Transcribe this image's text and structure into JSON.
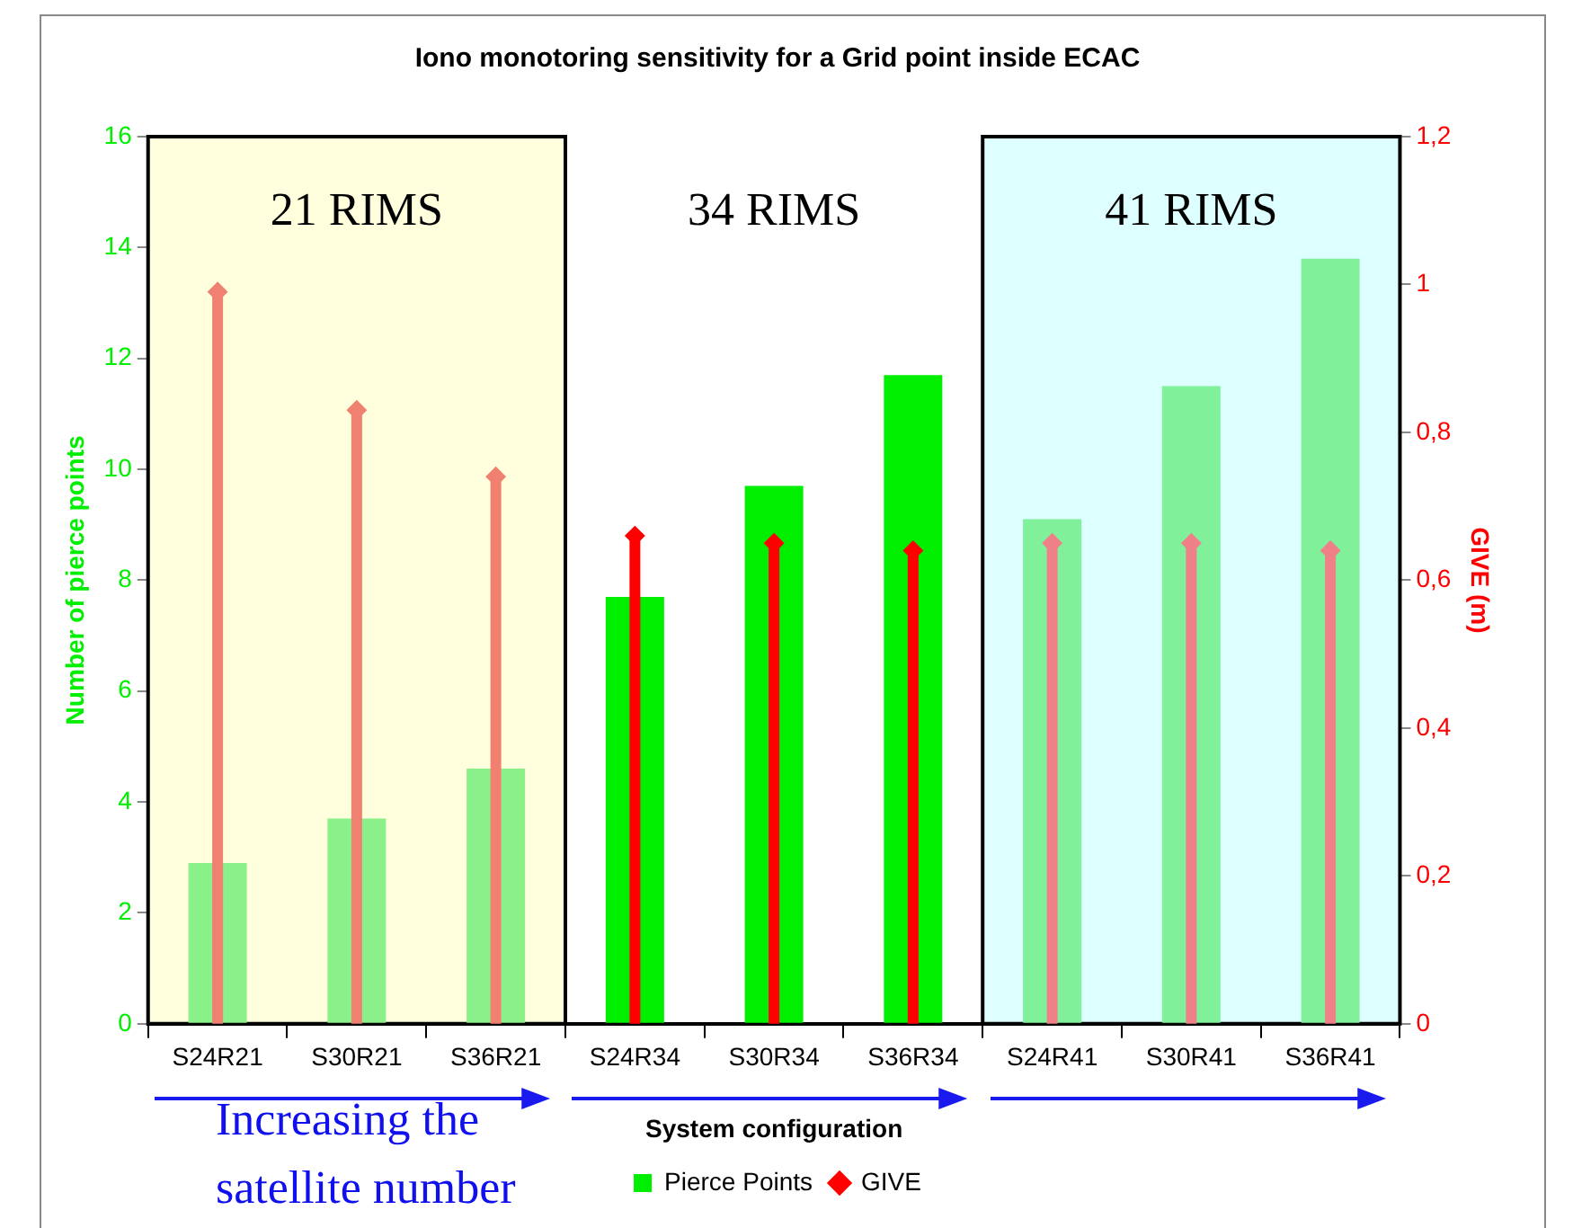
{
  "chart_data": {
    "type": "bar",
    "title": "Iono monotoring sensitivity for a Grid point inside ECAC",
    "xlabel": "System configuration",
    "ylabel": "Number of pierce points",
    "y2label": "GIVE (m)",
    "categories": [
      "S24R21",
      "S30R21",
      "S36R21",
      "S24R34",
      "S30R34",
      "S36R34",
      "S24R41",
      "S30R41",
      "S36R41"
    ],
    "series": [
      {
        "name": "Pierce Points",
        "color": "#00ee00",
        "colors": [
          "#8af08a",
          "#8af08a",
          "#8af08a",
          "#00ee00",
          "#00ee00",
          "#00ee00",
          "#80f09a",
          "#80f09a",
          "#80f09a"
        ],
        "values": [
          2.9,
          3.7,
          4.6,
          7.7,
          9.7,
          11.7,
          9.1,
          11.5,
          13.8
        ]
      },
      {
        "name": "GIVE",
        "type": "lollipop",
        "axis": "y2",
        "marker": "diamond",
        "color": "#ff0000",
        "colors": [
          "#f08070",
          "#f08070",
          "#f08070",
          "#ff0000",
          "#ff0000",
          "#ff0000",
          "#f08088",
          "#f08088",
          "#f08088"
        ],
        "values": [
          0.99,
          0.83,
          0.74,
          0.66,
          0.65,
          0.64,
          0.65,
          0.65,
          0.64
        ]
      }
    ],
    "ylim": [
      0,
      16
    ],
    "yticks": [
      0,
      2,
      4,
      6,
      8,
      10,
      12,
      14,
      16
    ],
    "y2lim": [
      0,
      1.2
    ],
    "y2ticks": [
      0,
      {
        "value": 0.2,
        "label": "0,2"
      },
      {
        "value": 0.4,
        "label": "0,4"
      },
      {
        "value": 0.6,
        "label": "0,6"
      },
      {
        "value": 0.8,
        "label": "0,8"
      },
      {
        "value": 1,
        "label": "1"
      },
      {
        "value": 1.2,
        "label": "1,2"
      }
    ],
    "bands": [
      {
        "axis": "x",
        "from": "S24R21",
        "to": "S36R21",
        "label": "21 RIMS",
        "color": "#ffffdd"
      },
      {
        "axis": "x",
        "from": "S24R41",
        "to": "S36R41",
        "label": "41 RIMS",
        "color": "#ddffff"
      }
    ],
    "annotations": [
      "34 RIMS",
      "Increasing the satellite number"
    ],
    "grid": false,
    "legend": "bottom"
  }
}
